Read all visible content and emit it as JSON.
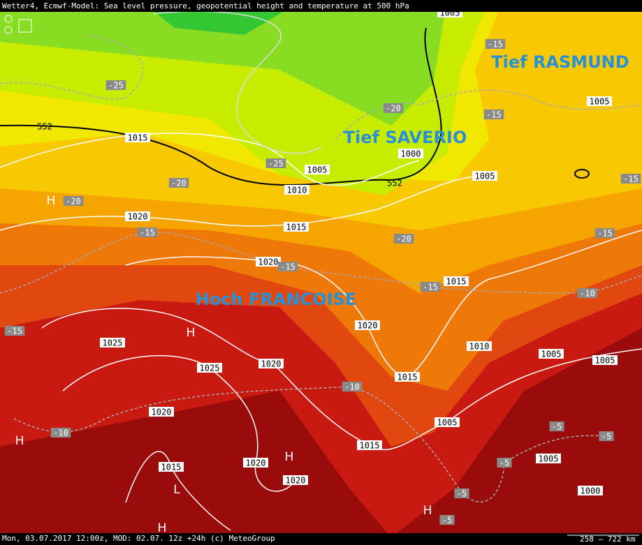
{
  "header": {
    "title": "Wetter4, Ecmwf-Model: Sea level pressure, geopotential height and temperature at 500 hPa"
  },
  "annotations": [
    "Tief RASMUND",
    "Tief SAVERIO",
    "Hoch FRANCOISE"
  ],
  "isobar_labels": [
    1005,
    1005,
    1015,
    1000,
    1005,
    1005,
    1010,
    1020,
    1015,
    1020,
    1015,
    1020,
    1025,
    1010,
    1025,
    1020,
    1005,
    1005,
    1015,
    1020,
    1005,
    1015,
    1015,
    1020,
    1005,
    1020,
    1000
  ],
  "temperature_labels": [
    -15,
    -25,
    -20,
    -15,
    -25,
    -20,
    -20,
    -15,
    -15,
    -20,
    -15,
    -15,
    -10,
    -15,
    -10,
    -10,
    -5,
    -5,
    -5,
    -5,
    -5,
    -15
  ],
  "height_labels": [
    552,
    552
  ],
  "pressure_centers": [
    "H",
    "H",
    "H",
    "H",
    "L",
    "H",
    "H"
  ],
  "footer": {
    "info": "Mon, 03.07.2017 12:00z, MOD: 02.07. 12z +24h (c) MeteoGroup",
    "scale": "258 – 722 km"
  }
}
